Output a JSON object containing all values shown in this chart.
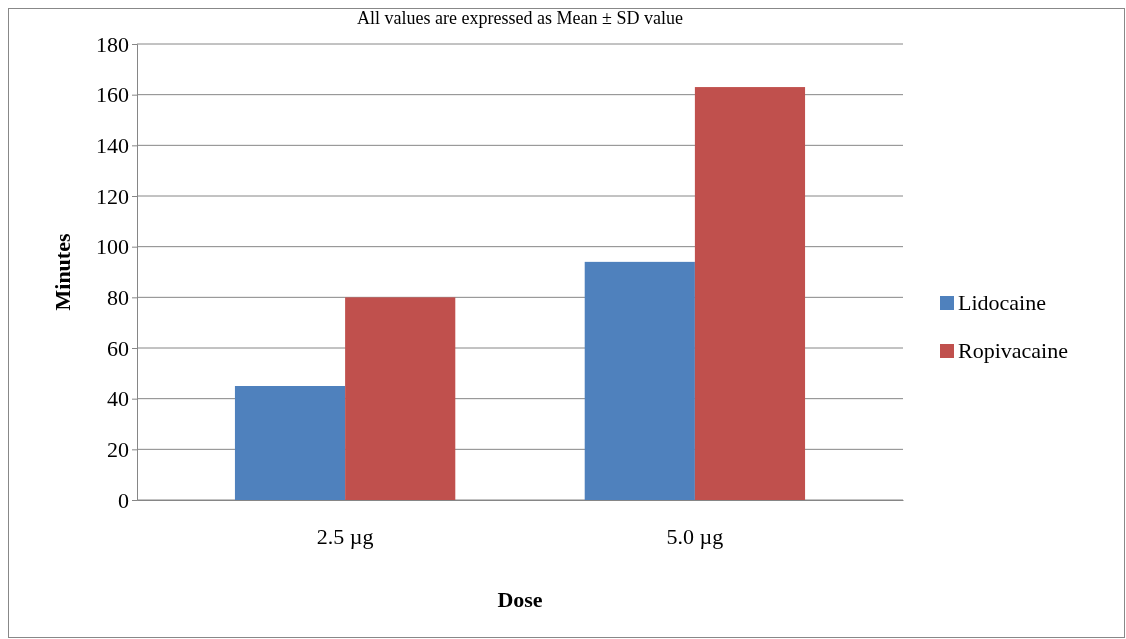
{
  "chart_data": {
    "type": "bar",
    "title": "All values are expressed as Mean ± SD value",
    "xlabel": "Dose",
    "ylabel": "Minutes",
    "categories": [
      "2.5 µg",
      "5.0 µg"
    ],
    "series": [
      {
        "name": "Lidocaine",
        "color": "#4f81bd",
        "values": [
          45,
          94
        ]
      },
      {
        "name": "Ropivacaine",
        "color": "#c0504d",
        "values": [
          80,
          163
        ]
      }
    ],
    "ylim": [
      0,
      180
    ],
    "yticks": [
      0,
      20,
      40,
      60,
      80,
      100,
      120,
      140,
      160,
      180
    ],
    "grid": "y",
    "legend": "right"
  }
}
